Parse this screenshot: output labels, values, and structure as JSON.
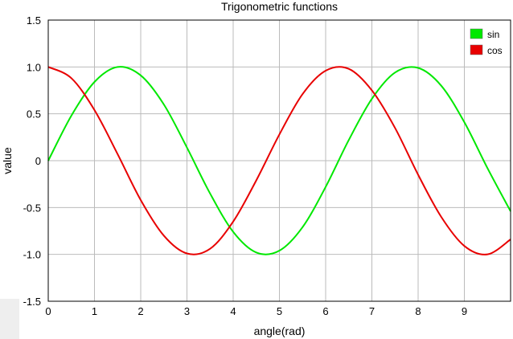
{
  "chart_data": {
    "type": "line",
    "title": "Trigonometric functions",
    "xlabel": "angle(rad)",
    "ylabel": "value",
    "xlim": [
      0,
      10
    ],
    "ylim": [
      -1.5,
      1.5
    ],
    "grid": true,
    "legend_position": "top-right",
    "x_ticks": [
      0,
      1,
      2,
      3,
      4,
      5,
      6,
      7,
      8,
      9
    ],
    "x_tick_labels": [
      "0",
      "1",
      "2",
      "3",
      "4",
      "5",
      "6",
      "7",
      "8",
      "9"
    ],
    "y_ticks": [
      1.5,
      1.0,
      0.5,
      0,
      -0.5,
      -1.0,
      -1.5
    ],
    "y_tick_labels": [
      "1.5",
      "1.0",
      "0.5",
      "0",
      "-0.5",
      "-1.0",
      "-1.5"
    ],
    "series": [
      {
        "name": "sin",
        "color": "#00e800",
        "x": [
          0,
          0.5,
          1,
          1.5,
          2,
          2.5,
          3,
          3.5,
          4,
          4.5,
          5,
          5.5,
          6,
          6.5,
          7,
          7.5,
          8,
          8.5,
          9,
          9.5,
          10
        ],
        "y": [
          0,
          0.48,
          0.84,
          1.0,
          0.91,
          0.6,
          0.14,
          -0.35,
          -0.76,
          -0.98,
          -0.96,
          -0.71,
          -0.28,
          0.22,
          0.66,
          0.94,
          0.99,
          0.8,
          0.41,
          -0.08,
          -0.54
        ]
      },
      {
        "name": "cos",
        "color": "#e80000",
        "x": [
          0,
          0.5,
          1,
          1.5,
          2,
          2.5,
          3,
          3.5,
          4,
          4.5,
          5,
          5.5,
          6,
          6.5,
          7,
          7.5,
          8,
          8.5,
          9,
          9.5,
          10
        ],
        "y": [
          1.0,
          0.88,
          0.54,
          0.07,
          -0.42,
          -0.8,
          -0.99,
          -0.94,
          -0.65,
          -0.21,
          0.28,
          0.71,
          0.96,
          0.98,
          0.75,
          0.35,
          -0.15,
          -0.6,
          -0.91,
          -1.0,
          -0.84
        ]
      }
    ]
  }
}
